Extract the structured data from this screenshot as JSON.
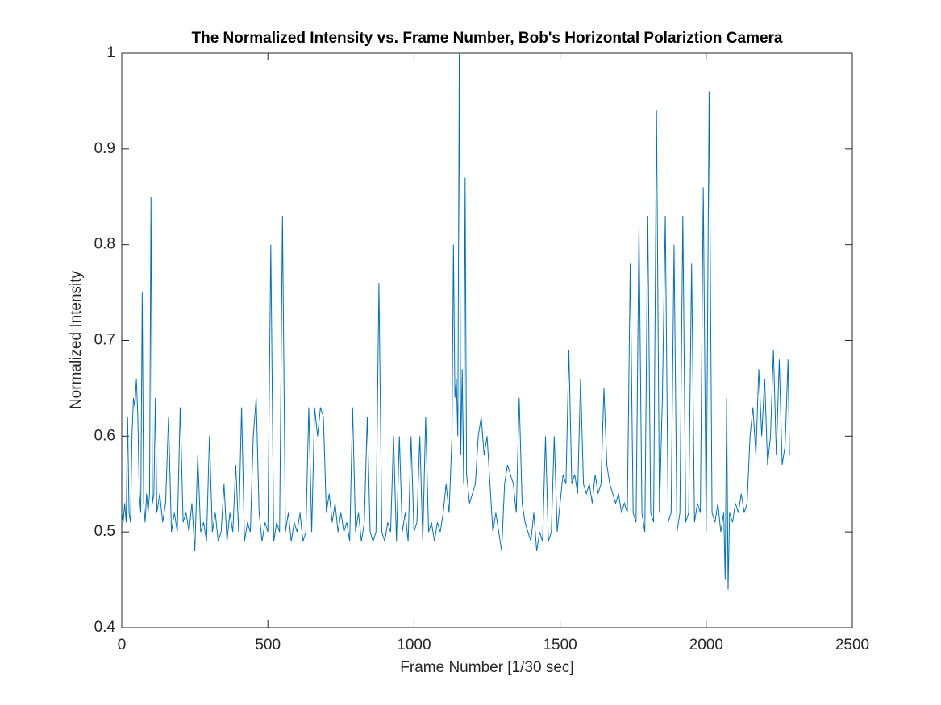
{
  "chart_data": {
    "type": "line",
    "title": "The Normalized Intensity vs. Frame Number, Bob's Horizontal Polariztion Camera",
    "x_label": "Frame Number [1/30 sec]",
    "y_label": "Normalized Intensity",
    "xlim": [
      0,
      2500
    ],
    "ylim": [
      0.4,
      1
    ],
    "xticks": [
      0,
      500,
      1000,
      1500,
      2000,
      2500
    ],
    "yticks": [
      0.4,
      0.5,
      0.6,
      0.7,
      0.8,
      0.9,
      1
    ],
    "grid": false,
    "color": "#0072bd",
    "x": [
      0,
      5,
      10,
      15,
      20,
      25,
      30,
      35,
      40,
      45,
      50,
      55,
      60,
      65,
      70,
      75,
      80,
      85,
      90,
      95,
      100,
      105,
      110,
      115,
      120,
      130,
      140,
      150,
      160,
      170,
      180,
      190,
      200,
      210,
      220,
      230,
      240,
      250,
      260,
      270,
      280,
      290,
      300,
      310,
      320,
      330,
      340,
      350,
      360,
      370,
      380,
      390,
      400,
      410,
      420,
      430,
      440,
      450,
      460,
      470,
      480,
      490,
      500,
      510,
      520,
      530,
      540,
      550,
      560,
      570,
      580,
      590,
      600,
      610,
      620,
      630,
      640,
      650,
      660,
      670,
      680,
      690,
      700,
      710,
      720,
      730,
      740,
      750,
      760,
      770,
      780,
      790,
      800,
      810,
      820,
      830,
      840,
      850,
      860,
      870,
      880,
      890,
      900,
      910,
      920,
      930,
      940,
      950,
      960,
      970,
      980,
      990,
      1000,
      1010,
      1020,
      1030,
      1040,
      1050,
      1060,
      1070,
      1080,
      1090,
      1100,
      1110,
      1120,
      1130,
      1135,
      1140,
      1145,
      1150,
      1155,
      1160,
      1165,
      1170,
      1175,
      1180,
      1190,
      1200,
      1210,
      1220,
      1230,
      1240,
      1250,
      1260,
      1270,
      1280,
      1290,
      1300,
      1310,
      1320,
      1330,
      1340,
      1350,
      1360,
      1370,
      1380,
      1390,
      1400,
      1410,
      1420,
      1430,
      1440,
      1450,
      1460,
      1470,
      1480,
      1490,
      1500,
      1510,
      1520,
      1530,
      1540,
      1550,
      1560,
      1570,
      1580,
      1590,
      1600,
      1610,
      1620,
      1630,
      1640,
      1650,
      1660,
      1670,
      1680,
      1690,
      1700,
      1710,
      1720,
      1730,
      1740,
      1750,
      1760,
      1770,
      1780,
      1790,
      1800,
      1810,
      1820,
      1830,
      1840,
      1850,
      1860,
      1870,
      1880,
      1890,
      1900,
      1910,
      1920,
      1930,
      1940,
      1950,
      1960,
      1970,
      1980,
      1990,
      2000,
      2010,
      2020,
      2030,
      2040,
      2050,
      2060,
      2065,
      2070,
      2075,
      2080,
      2090,
      2100,
      2110,
      2120,
      2130,
      2140,
      2150,
      2160,
      2170,
      2180,
      2190,
      2200,
      2210,
      2220,
      2230,
      2240,
      2250,
      2260,
      2270,
      2280,
      2285
    ],
    "values": [
      0.52,
      0.51,
      0.53,
      0.51,
      0.62,
      0.52,
      0.51,
      0.6,
      0.64,
      0.63,
      0.66,
      0.62,
      0.54,
      0.52,
      0.75,
      0.53,
      0.51,
      0.54,
      0.52,
      0.54,
      0.85,
      0.53,
      0.54,
      0.64,
      0.52,
      0.54,
      0.51,
      0.53,
      0.62,
      0.5,
      0.52,
      0.5,
      0.63,
      0.51,
      0.52,
      0.5,
      0.53,
      0.48,
      0.58,
      0.5,
      0.51,
      0.49,
      0.6,
      0.5,
      0.52,
      0.49,
      0.5,
      0.55,
      0.49,
      0.52,
      0.5,
      0.57,
      0.5,
      0.63,
      0.49,
      0.51,
      0.5,
      0.6,
      0.64,
      0.52,
      0.49,
      0.51,
      0.5,
      0.8,
      0.49,
      0.51,
      0.5,
      0.83,
      0.5,
      0.52,
      0.49,
      0.51,
      0.5,
      0.52,
      0.49,
      0.5,
      0.63,
      0.5,
      0.63,
      0.6,
      0.63,
      0.62,
      0.52,
      0.54,
      0.51,
      0.53,
      0.5,
      0.52,
      0.5,
      0.51,
      0.49,
      0.63,
      0.5,
      0.52,
      0.49,
      0.51,
      0.62,
      0.5,
      0.49,
      0.5,
      0.76,
      0.5,
      0.49,
      0.51,
      0.5,
      0.6,
      0.49,
      0.6,
      0.5,
      0.52,
      0.49,
      0.6,
      0.5,
      0.51,
      0.6,
      0.49,
      0.62,
      0.5,
      0.51,
      0.49,
      0.51,
      0.5,
      0.52,
      0.55,
      0.52,
      0.6,
      0.8,
      0.64,
      0.66,
      0.6,
      1.0,
      0.58,
      0.67,
      0.55,
      0.87,
      0.56,
      0.53,
      0.54,
      0.55,
      0.6,
      0.62,
      0.58,
      0.6,
      0.55,
      0.5,
      0.52,
      0.5,
      0.48,
      0.55,
      0.57,
      0.56,
      0.55,
      0.52,
      0.64,
      0.53,
      0.51,
      0.5,
      0.49,
      0.52,
      0.48,
      0.5,
      0.49,
      0.6,
      0.49,
      0.5,
      0.6,
      0.5,
      0.53,
      0.56,
      0.55,
      0.69,
      0.55,
      0.56,
      0.54,
      0.66,
      0.55,
      0.54,
      0.55,
      0.53,
      0.56,
      0.54,
      0.55,
      0.65,
      0.57,
      0.55,
      0.54,
      0.53,
      0.54,
      0.52,
      0.53,
      0.52,
      0.78,
      0.52,
      0.51,
      0.82,
      0.52,
      0.5,
      0.83,
      0.52,
      0.51,
      0.94,
      0.52,
      0.64,
      0.83,
      0.51,
      0.52,
      0.8,
      0.5,
      0.52,
      0.83,
      0.51,
      0.52,
      0.78,
      0.51,
      0.53,
      0.52,
      0.86,
      0.5,
      0.96,
      0.52,
      0.51,
      0.53,
      0.5,
      0.52,
      0.45,
      0.64,
      0.44,
      0.52,
      0.51,
      0.53,
      0.52,
      0.54,
      0.52,
      0.53,
      0.6,
      0.63,
      0.58,
      0.67,
      0.6,
      0.66,
      0.57,
      0.6,
      0.69,
      0.58,
      0.68,
      0.57,
      0.59,
      0.68,
      0.58
    ]
  }
}
